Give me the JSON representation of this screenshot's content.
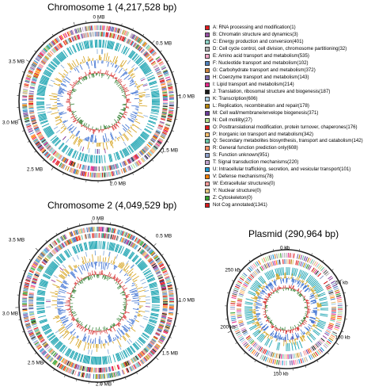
{
  "maps": [
    {
      "title": "Chromosome 1 (4,217,528 bp)",
      "ticks": [
        "0 MB",
        "0.5 MB",
        "1.0 MB",
        "1.5 MB",
        "2.0 MB",
        "2.5 MB",
        "3.0 MB",
        "3.5 MB"
      ]
    },
    {
      "title": "Chromosome 2 (4,049,529 bp)",
      "ticks": [
        "0 MB",
        "0.5 MB",
        "1.0 MB",
        "1.5 MB",
        "2.0 MB",
        "2.5 MB",
        "3.0 MB",
        "3.5 MB"
      ]
    },
    {
      "title": "Plasmid (290,964 bp)",
      "ticks": [
        "0 kb",
        "50 kb",
        "100 kb",
        "150 kb",
        "200 kb",
        "250 kb"
      ]
    }
  ],
  "legend": [
    {
      "label": "A: RNA processing and modification(1)",
      "color": "#e41a1c"
    },
    {
      "label": "B: Chromatin structure and dynamics(3)",
      "color": "#984ea3"
    },
    {
      "label": "C: Energy production and conversion(401)",
      "color": "#8dd3c7"
    },
    {
      "label": "D: Cell cycle control, cell division, chromosome partitioning(32)",
      "color": "#b3b3b3"
    },
    {
      "label": "E: Amino acid transport and metabolism(535)",
      "color": "#f4a6c6"
    },
    {
      "label": "F: Nucleotide transport and metabolism(102)",
      "color": "#4f81bd"
    },
    {
      "label": "G: Carbohydrate transport and metabolism(372)",
      "color": "#cd853f"
    },
    {
      "label": "H: Coenzyme transport and metabolism(143)",
      "color": "#7b68ae"
    },
    {
      "label": "I: Lipid transport and metabolism(214)",
      "color": "#e7298a"
    },
    {
      "label": "J: Translation, ribosomal structure and biogenesis(187)",
      "color": "#1a1a1a"
    },
    {
      "label": "K: Transcription(606)",
      "color": "#a6cee3"
    },
    {
      "label": "L: Replication, recombination and repair(178)",
      "color": "#b8860b"
    },
    {
      "label": "M: Cell wall/membrane/envelope biogenesis(371)",
      "color": "#6a3d9a"
    },
    {
      "label": "N: Cell motility(27)",
      "color": "#b2df8a"
    },
    {
      "label": "O: Posttranslational modification, protein turnover, chaperones(176)",
      "color": "#e31a1c"
    },
    {
      "label": "P: Inorganic ion transport and metabolism(342)",
      "color": "#fdbf6f"
    },
    {
      "label": "Q: Secondary metabolites biosynthesis, transport and catabolism(142)",
      "color": "#66c2a5"
    },
    {
      "label": "R: General function prediction only(608)",
      "color": "#fc8d62"
    },
    {
      "label": "S: Function unknown(951)",
      "color": "#8da0cb"
    },
    {
      "label": "T: Signal transduction mechanisms(220)",
      "color": "#c2a5cf"
    },
    {
      "label": "U: Intracellular trafficking, secretion, and vesicular transport(101)",
      "color": "#1f9bd1"
    },
    {
      "label": "V: Defense mechanisms(78)",
      "color": "#ff7f00"
    },
    {
      "label": "W: Extracellular structures(0)",
      "color": "#fb9a99"
    },
    {
      "label": "Y: Nuclear structure(0)",
      "color": "#dfc27d"
    },
    {
      "label": "Z: Cytoskeleton(0)",
      "color": "#33a02c"
    },
    {
      "label": "Not Cog annotated(1341)",
      "color": "#d7191c"
    }
  ]
}
